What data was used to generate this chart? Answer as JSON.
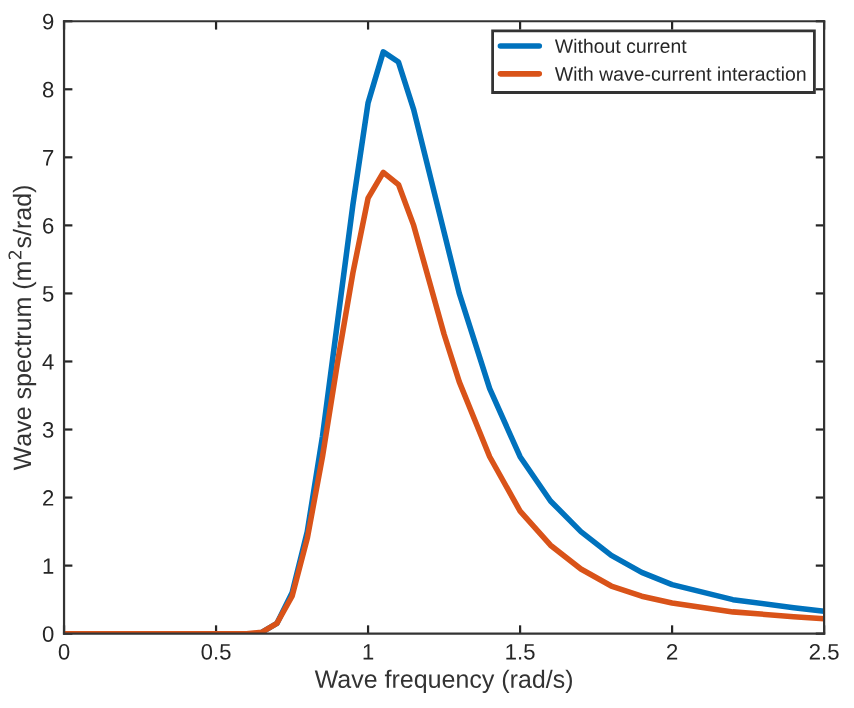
{
  "chart_data": {
    "type": "line",
    "xlabel": "Wave frequency (rad/s)",
    "ylabel": "Wave spectrum (m$^{2}$s/rad)",
    "xlim": [
      0,
      2.5
    ],
    "ylim": [
      0,
      9
    ],
    "xticks": [
      0,
      0.5,
      1,
      1.5,
      2,
      2.5
    ],
    "yticks": [
      0,
      1,
      2,
      3,
      4,
      5,
      6,
      7,
      8,
      9
    ],
    "grid": false,
    "legend": "top right",
    "marker": "none",
    "line_style": "solid",
    "x": [
      0,
      0.5,
      0.6,
      0.65,
      0.7,
      0.75,
      0.8,
      0.85,
      0.9,
      0.95,
      1.0,
      1.05,
      1.1,
      1.15,
      1.2,
      1.25,
      1.3,
      1.4,
      1.5,
      1.6,
      1.7,
      1.8,
      1.9,
      2.0,
      2.2,
      2.4,
      2.5
    ],
    "series": [
      {
        "name": "Without current",
        "color": "#0072bd",
        "values": [
          null,
          null,
          null,
          0.02,
          0.15,
          0.6,
          1.5,
          2.9,
          4.6,
          6.3,
          7.8,
          8.55,
          8.4,
          7.7,
          6.8,
          5.9,
          5.0,
          3.6,
          2.6,
          1.95,
          1.5,
          1.15,
          0.9,
          0.72,
          0.5,
          0.38,
          0.33
        ]
      },
      {
        "name": "With wave-current interaction",
        "color": "#d95319",
        "values": [
          0,
          0,
          0,
          0.02,
          0.15,
          0.55,
          1.4,
          2.6,
          4.0,
          5.3,
          6.4,
          6.78,
          6.6,
          6.0,
          5.2,
          4.4,
          3.7,
          2.6,
          1.8,
          1.3,
          0.95,
          0.7,
          0.55,
          0.45,
          0.32,
          0.25,
          0.22
        ]
      }
    ]
  }
}
